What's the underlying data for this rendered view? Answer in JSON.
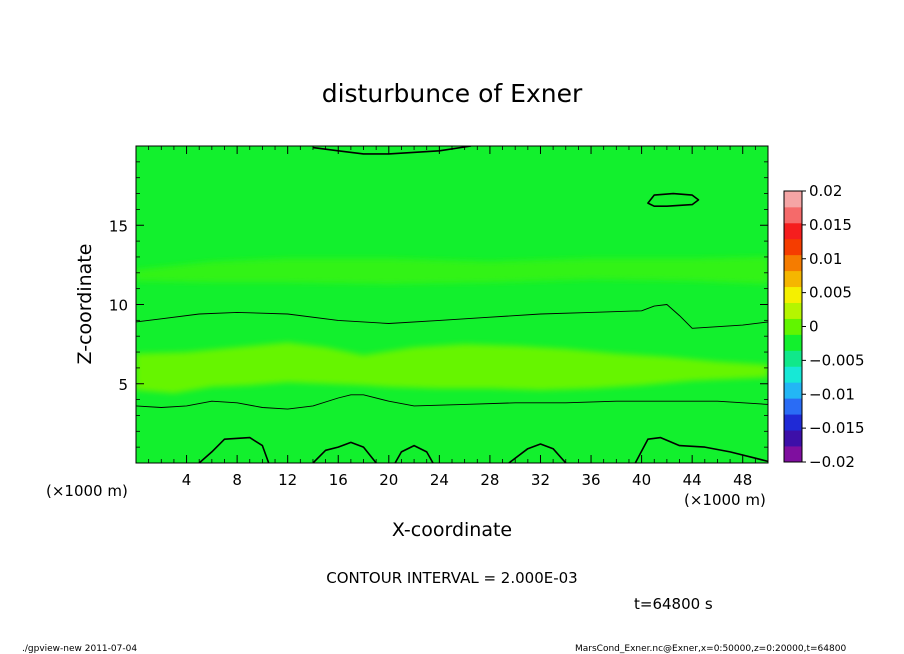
{
  "chart_data": {
    "type": "heatmap",
    "title": "disturbunce of Exner",
    "xlabel": "X-coordinate",
    "ylabel": "Z-coordinate",
    "x_unit": "(×1000 m)",
    "x_unit_right": "(×1000 m)",
    "xlim": [
      0,
      50
    ],
    "ylim": [
      0,
      20
    ],
    "x_ticks": [
      4,
      8,
      12,
      16,
      20,
      24,
      28,
      32,
      36,
      40,
      44,
      48
    ],
    "y_ticks": [
      5,
      10,
      15
    ],
    "colorbar": {
      "ticks": [
        "0.02",
        "0.015",
        "0.01",
        "0.005",
        "0",
        "−0.005",
        "−0.01",
        "−0.015",
        "−0.02"
      ],
      "range": [
        -0.02,
        0.02
      ],
      "colors": [
        "#7f0f9f",
        "#3d0fa8",
        "#1f2ad6",
        "#2a6cf5",
        "#23b6f5",
        "#17e8d6",
        "#10e88a",
        "#12f02d",
        "#61f500",
        "#b5f500",
        "#f5f000",
        "#f5b600",
        "#f57c00",
        "#f53d00",
        "#f51e1e",
        "#f56a6a",
        "#f5a5a5"
      ]
    },
    "contour_interval_text": "CONTOUR INTERVAL = 2.000E-03",
    "time_text": "t=64800 s",
    "contours": [
      {
        "level": 0.002,
        "points": [
          [
            0,
            8.9
          ],
          [
            2,
            9.1
          ],
          [
            5,
            9.4
          ],
          [
            8,
            9.5
          ],
          [
            12,
            9.4
          ],
          [
            16,
            9.0
          ],
          [
            20,
            8.8
          ],
          [
            24,
            9.0
          ],
          [
            28,
            9.2
          ],
          [
            32,
            9.4
          ],
          [
            36,
            9.5
          ],
          [
            40,
            9.6
          ],
          [
            41,
            9.9
          ],
          [
            42,
            10.0
          ],
          [
            43,
            9.3
          ],
          [
            44,
            8.5
          ],
          [
            46,
            8.6
          ],
          [
            48,
            8.7
          ],
          [
            50,
            8.9
          ]
        ]
      },
      {
        "level": 0.002,
        "points": [
          [
            0,
            3.6
          ],
          [
            2,
            3.5
          ],
          [
            4,
            3.6
          ],
          [
            6,
            3.9
          ],
          [
            8,
            3.8
          ],
          [
            10,
            3.5
          ],
          [
            12,
            3.4
          ],
          [
            14,
            3.6
          ],
          [
            16,
            4.1
          ],
          [
            17,
            4.3
          ],
          [
            18,
            4.3
          ],
          [
            20,
            3.9
          ],
          [
            22,
            3.6
          ],
          [
            26,
            3.7
          ],
          [
            30,
            3.8
          ],
          [
            34,
            3.8
          ],
          [
            38,
            3.9
          ],
          [
            42,
            3.9
          ],
          [
            46,
            3.9
          ],
          [
            50,
            3.7
          ]
        ]
      },
      {
        "level": -0.002,
        "points": [
          [
            5,
            0
          ],
          [
            6,
            0.7
          ],
          [
            7,
            1.5
          ],
          [
            9,
            1.6
          ],
          [
            10,
            1.1
          ],
          [
            10.5,
            0
          ]
        ]
      },
      {
        "level": -0.002,
        "points": [
          [
            14,
            0
          ],
          [
            15,
            0.8
          ],
          [
            16,
            1.0
          ],
          [
            17,
            1.3
          ],
          [
            18,
            1.0
          ],
          [
            19,
            0
          ]
        ]
      },
      {
        "level": -0.002,
        "points": [
          [
            20.5,
            0
          ],
          [
            21,
            0.7
          ],
          [
            22,
            1.1
          ],
          [
            23,
            0.7
          ],
          [
            23.5,
            0
          ]
        ]
      },
      {
        "level": -0.002,
        "points": [
          [
            29.5,
            0
          ],
          [
            31,
            0.9
          ],
          [
            32,
            1.2
          ],
          [
            33,
            0.9
          ],
          [
            34,
            0
          ]
        ]
      },
      {
        "level": -0.002,
        "points": [
          [
            39.5,
            0
          ],
          [
            40.5,
            1.5
          ],
          [
            41.5,
            1.6
          ],
          [
            43,
            1.1
          ],
          [
            45,
            1.0
          ],
          [
            47,
            0.7
          ],
          [
            49,
            0.3
          ],
          [
            50,
            0.1
          ]
        ]
      },
      {
        "level": -0.002,
        "points": [
          [
            14,
            19.9
          ],
          [
            16,
            19.7
          ],
          [
            18,
            19.5
          ],
          [
            20,
            19.5
          ],
          [
            24,
            19.7
          ],
          [
            26.5,
            20
          ]
        ]
      },
      {
        "level": -0.002,
        "closed": true,
        "points": [
          [
            40.5,
            16.4
          ],
          [
            41,
            16.9
          ],
          [
            42.5,
            17.0
          ],
          [
            44,
            16.9
          ],
          [
            44.5,
            16.6
          ],
          [
            44,
            16.3
          ],
          [
            42,
            16.2
          ],
          [
            41,
            16.2
          ]
        ]
      }
    ],
    "regions": [
      {
        "name": "light-band",
        "color": "#66f500",
        "points": [
          [
            0,
            4.6
          ],
          [
            3,
            4.4
          ],
          [
            6,
            4.8
          ],
          [
            9,
            4.9
          ],
          [
            12,
            5.1
          ],
          [
            15,
            5.0
          ],
          [
            18,
            4.9
          ],
          [
            20,
            4.8
          ],
          [
            24,
            4.7
          ],
          [
            28,
            4.7
          ],
          [
            32,
            4.6
          ],
          [
            36,
            4.7
          ],
          [
            40,
            4.9
          ],
          [
            44,
            5.2
          ],
          [
            50,
            5.4
          ],
          [
            50,
            6.2
          ],
          [
            46,
            6.4
          ],
          [
            42,
            6.7
          ],
          [
            38,
            6.9
          ],
          [
            34,
            7.2
          ],
          [
            30,
            7.4
          ],
          [
            26,
            7.5
          ],
          [
            22,
            7.3
          ],
          [
            18,
            6.8
          ],
          [
            15,
            7.3
          ],
          [
            12,
            7.6
          ],
          [
            8,
            7.3
          ],
          [
            4,
            7.0
          ],
          [
            0,
            6.9
          ]
        ]
      },
      {
        "name": "upper-band",
        "color": "#33f312",
        "points": [
          [
            0,
            12.2
          ],
          [
            6,
            12.7
          ],
          [
            12,
            12.9
          ],
          [
            20,
            12.9
          ],
          [
            28,
            12.7
          ],
          [
            36,
            12.9
          ],
          [
            44,
            12.9
          ],
          [
            50,
            13.0
          ],
          [
            50,
            11.3
          ],
          [
            44,
            11.5
          ],
          [
            36,
            11.6
          ],
          [
            28,
            11.4
          ],
          [
            20,
            11.3
          ],
          [
            12,
            11.4
          ],
          [
            6,
            11.4
          ],
          [
            0,
            11.5
          ]
        ]
      }
    ]
  },
  "footer": {
    "left": "./gpview-new   2011-07-04",
    "right": "MarsCond_Exner.nc@Exner,x=0:50000,z=0:20000,t=64800"
  }
}
